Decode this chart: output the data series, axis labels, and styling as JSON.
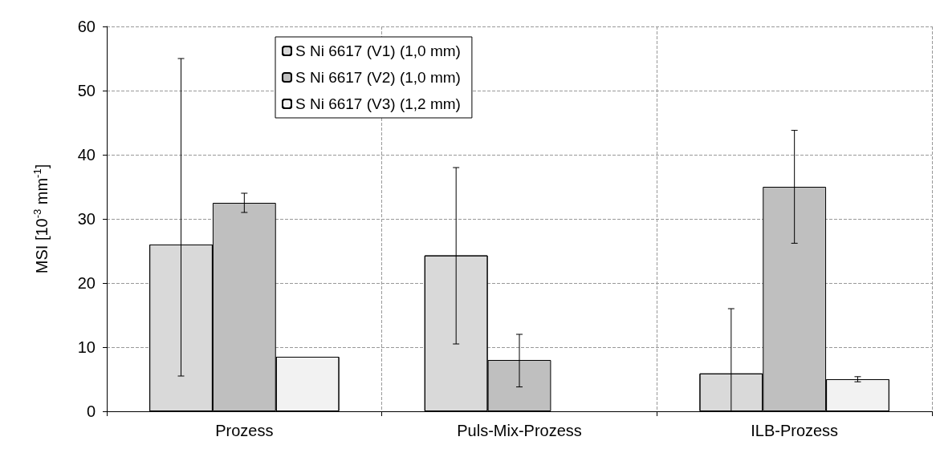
{
  "chart_data": {
    "type": "bar",
    "ylabel": "MSI [10$^{-3}$ mm$^{-1}$]",
    "categories": [
      "Prozess",
      "Puls-Mix-Prozess",
      "ILB-Prozess"
    ],
    "series": [
      {
        "name": "S Ni 6617 (V1) (1,0 mm)",
        "color": "#d9d9d9",
        "values": [
          26,
          24.3,
          5.9
        ],
        "errors": [
          [
            5.5,
            55
          ],
          [
            10.5,
            38
          ],
          [
            0,
            16
          ]
        ]
      },
      {
        "name": "S Ni 6617 (V2) (1,0 mm)",
        "color": "#bfbfbf",
        "values": [
          32.5,
          8,
          35
        ],
        "errors": [
          [
            31,
            34
          ],
          [
            3.8,
            12
          ],
          [
            26.2,
            43.8
          ]
        ]
      },
      {
        "name": "S Ni 6617 (V3) (1,2 mm)",
        "color": "#f2f2f2",
        "values": [
          8.5,
          null,
          5
        ],
        "errors": [
          null,
          null,
          [
            4.6,
            5.4
          ]
        ]
      }
    ],
    "ylim": [
      0,
      60
    ],
    "yticks": [
      0,
      10,
      20,
      30,
      40,
      50,
      60
    ],
    "grid": true,
    "legend": "top"
  }
}
